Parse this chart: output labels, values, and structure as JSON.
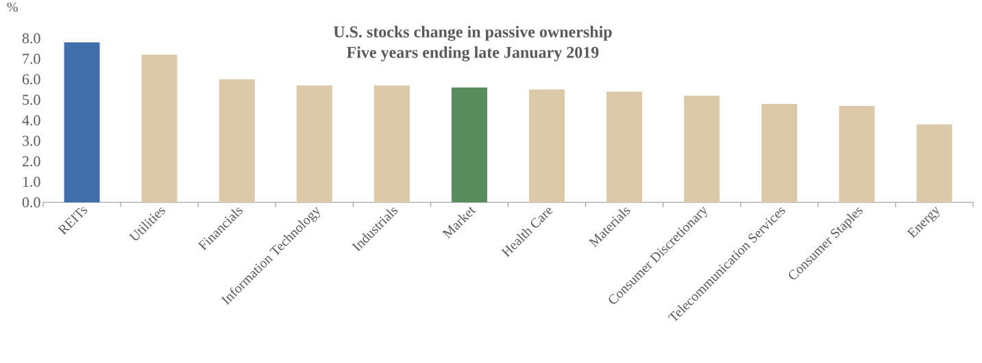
{
  "chart_data": {
    "type": "bar",
    "title": "U.S. stocks change in passive ownership",
    "subtitle": "Five years ending late January 2019",
    "ylabel": "%",
    "categories": [
      "REITs",
      "Utilities",
      "Financials",
      "Information Technology",
      "Industrials",
      "Market",
      "Health Care",
      "Materials",
      "Consumer Discretionary",
      "Telecommunication Services",
      "Consumer Staples",
      "Energy"
    ],
    "values": [
      7.8,
      7.2,
      6.0,
      5.7,
      5.7,
      5.6,
      5.5,
      5.4,
      5.2,
      4.8,
      4.7,
      3.8
    ],
    "colors": [
      "#416fab",
      "#dcc9aa",
      "#dcc9aa",
      "#dcc9aa",
      "#dcc9aa",
      "#588c5c",
      "#dcc9aa",
      "#dcc9aa",
      "#dcc9aa",
      "#dcc9aa",
      "#dcc9aa",
      "#dcc9aa"
    ],
    "ylim": [
      0,
      8
    ],
    "yticks": [
      {
        "value": 0,
        "label": "0.0"
      },
      {
        "value": 1,
        "label": "1.0"
      },
      {
        "value": 2,
        "label": "2.0"
      },
      {
        "value": 3,
        "label": "3.0"
      },
      {
        "value": 4,
        "label": "4.0"
      },
      {
        "value": 5,
        "label": "5.0"
      },
      {
        "value": 6,
        "label": "6.0"
      },
      {
        "value": 7,
        "label": "7.0"
      },
      {
        "value": 8,
        "label": "8.0"
      }
    ]
  }
}
